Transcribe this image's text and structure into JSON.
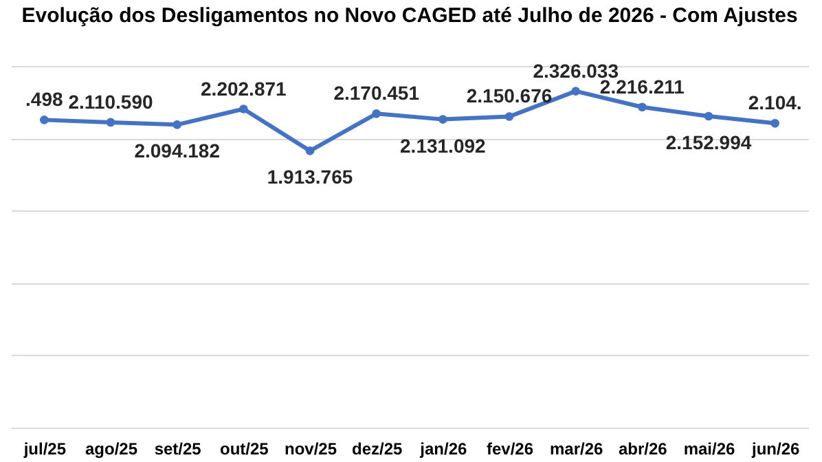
{
  "chart_data": {
    "type": "line",
    "title": "Evolução dos Desligamentos no Novo CAGED até Julho de 2026 - Com Ajustes",
    "categories": [
      "jul/25",
      "ago/25",
      "set/25",
      "out/25",
      "nov/25",
      "dez/25",
      "jan/26",
      "fev/26",
      "mar/26",
      "abr/26",
      "mai/26",
      "jun/26"
    ],
    "series": [
      {
        "color": "#4472c4",
        "values": [
          2127498,
          2110590,
          2094182,
          2202871,
          1913765,
          2170451,
          2131092,
          2150676,
          2326033,
          2216211,
          2152994,
          2104000
        ],
        "value_labels": [
          null,
          "2.110.590",
          "2.094.182",
          "2.202.871",
          "1.913.765",
          "2.170.451",
          "2.131.092",
          "2.150.676",
          "2.326.033",
          "2.216.211",
          "2.152.994",
          null
        ]
      }
    ],
    "annotations": [
      {
        "text": ".498",
        "x": "jul/25",
        "y": 2127498
      },
      {
        "text": "2.104.",
        "x": "jun/26",
        "y": 2104000
      }
    ],
    "relative": false,
    "ylim": [
      0,
      2500000
    ],
    "yticks": [
      {
        "value": 0,
        "label": null
      },
      {
        "value": 500000,
        "label": null
      },
      {
        "value": 1000000,
        "label": null
      },
      {
        "value": 1500000,
        "label": null
      },
      {
        "value": 2000000,
        "label": null
      },
      {
        "value": 2500000,
        "label": null
      }
    ],
    "grid": "y",
    "legend": false,
    "marker": "circle",
    "line_style": "solid"
  }
}
